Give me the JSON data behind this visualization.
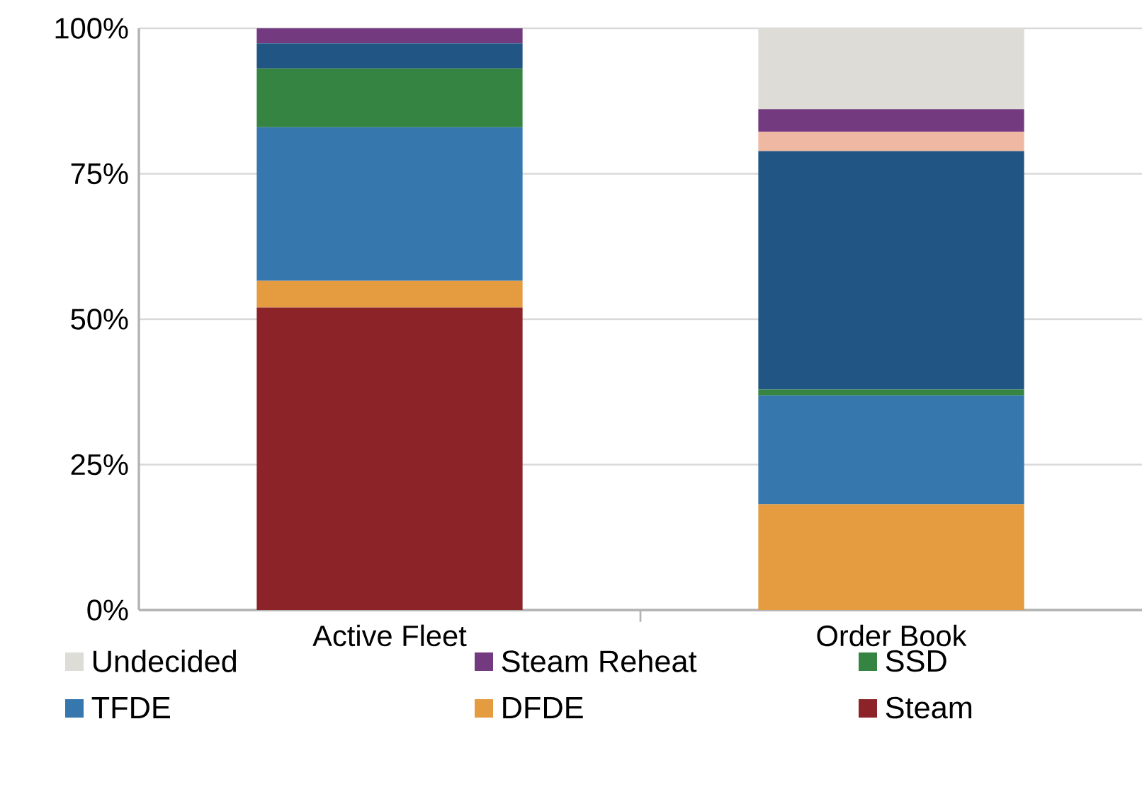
{
  "chart_data": {
    "type": "bar",
    "stacked": true,
    "categories": [
      "Active Fleet",
      "Order Book"
    ],
    "series": [
      {
        "name": "Steam",
        "color": "#8b2328",
        "values": [
          52.0,
          0
        ]
      },
      {
        "name": "DFDE",
        "color": "#e59b3f",
        "values": [
          4.6,
          18.2
        ]
      },
      {
        "name": "TFDE",
        "color": "#3677ae",
        "values": [
          26.4,
          18.7
        ]
      },
      {
        "name": "SSD",
        "color": "#368441",
        "values": [
          10.1,
          1.0
        ]
      },
      {
        "color": "#215583",
        "values": [
          4.3,
          41.0
        ]
      },
      {
        "color": "#efb8a2",
        "values": [
          0,
          3.3
        ]
      },
      {
        "name": "Steam Reheat",
        "color": "#733a80",
        "values": [
          2.6,
          3.9
        ]
      },
      {
        "name": "Undecided",
        "color": "#dddcd7",
        "values": [
          0,
          13.9
        ]
      }
    ],
    "ylim": [
      0,
      100
    ],
    "yticks": [
      {
        "value": 0,
        "label": "0%"
      },
      {
        "value": 25,
        "label": "25%"
      },
      {
        "value": 50,
        "label": "50%"
      },
      {
        "value": 75,
        "label": "75%"
      },
      {
        "value": 100,
        "label": "100%"
      }
    ],
    "grid": "y",
    "legend": "bottom"
  }
}
